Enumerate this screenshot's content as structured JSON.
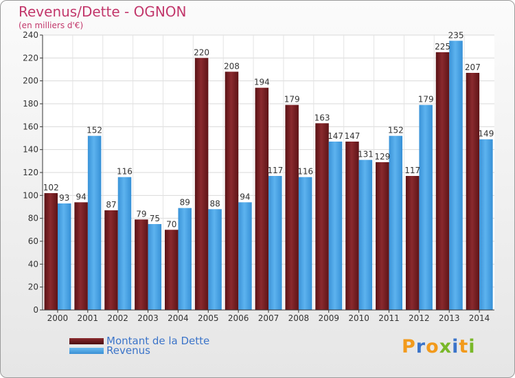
{
  "title": "Revenus/Dette - OGNON",
  "subtitle": "(en milliers d'€)",
  "logo_text": "Proxiti",
  "colors": {
    "dette": "#7a1f23",
    "revenus": "#4aa3e3",
    "title": "#c2376b",
    "legend_text": "#3b74c9"
  },
  "chart_data": {
    "type": "bar",
    "categories": [
      "2000",
      "2001",
      "2002",
      "2003",
      "2004",
      "2005",
      "2006",
      "2007",
      "2008",
      "2009",
      "2010",
      "2011",
      "2012",
      "2013",
      "2014"
    ],
    "series": [
      {
        "name": "Montant de la Dette",
        "values": [
          102,
          94,
          87,
          79,
          70,
          220,
          208,
          194,
          179,
          163,
          147,
          129,
          117,
          225,
          207
        ]
      },
      {
        "name": "Revenus",
        "values": [
          93,
          152,
          116,
          75,
          89,
          88,
          94,
          117,
          116,
          147,
          131,
          152,
          179,
          235,
          149
        ]
      }
    ],
    "yticks": [
      0,
      20,
      40,
      60,
      80,
      100,
      120,
      140,
      160,
      180,
      200,
      220,
      240
    ],
    "ylim": [
      0,
      240
    ],
    "grid": true,
    "legend_position": "bottom-left"
  }
}
